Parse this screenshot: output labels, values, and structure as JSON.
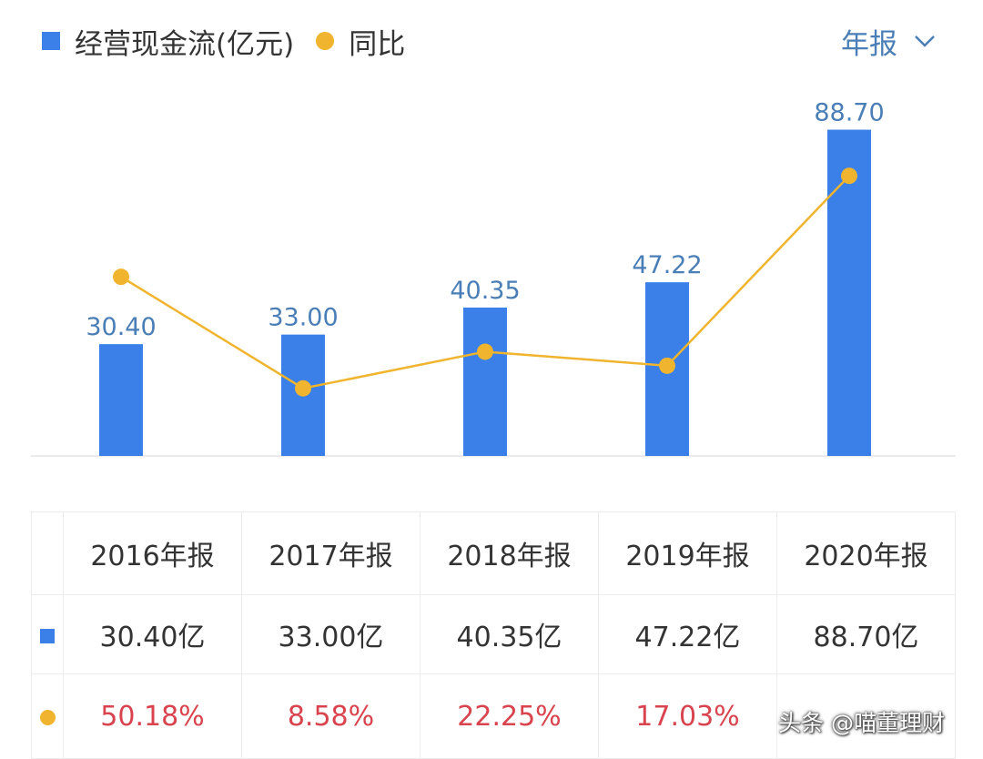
{
  "legend": {
    "bar_label": "经营现金流(亿元)",
    "line_label": "同比"
  },
  "period_select": {
    "label": "年报"
  },
  "colors": {
    "bar": "#3a80e8",
    "line": "#f0b42e",
    "bar_label_text": "#4a7eb6",
    "axis": "#e3e3e3",
    "yoy_text": "#d9434d",
    "period_text": "#4a7eb6"
  },
  "chart_data": {
    "type": "bar",
    "categories": [
      "2016年报",
      "2017年报",
      "2018年报",
      "2019年报",
      "2020年报"
    ],
    "series": [
      {
        "name": "经营现金流(亿元)",
        "type": "bar",
        "values": [
          30.4,
          33.0,
          40.35,
          47.22,
          88.7
        ],
        "labels": [
          "30.40",
          "33.00",
          "40.35",
          "47.22",
          "88.70"
        ]
      },
      {
        "name": "同比",
        "type": "line",
        "values": [
          50.18,
          8.58,
          22.25,
          17.03,
          87.85
        ]
      }
    ],
    "grid": false
  },
  "table": {
    "headers": [
      "2016年报",
      "2017年报",
      "2018年报",
      "2019年报",
      "2020年报"
    ],
    "bar_row": [
      "30.40亿",
      "33.00亿",
      "40.35亿",
      "47.22亿",
      "88.70亿"
    ],
    "yoy_row": [
      "50.18%",
      "8.58%",
      "22.25%",
      "17.03%",
      ""
    ]
  },
  "watermark": "头条 @喵董理财"
}
